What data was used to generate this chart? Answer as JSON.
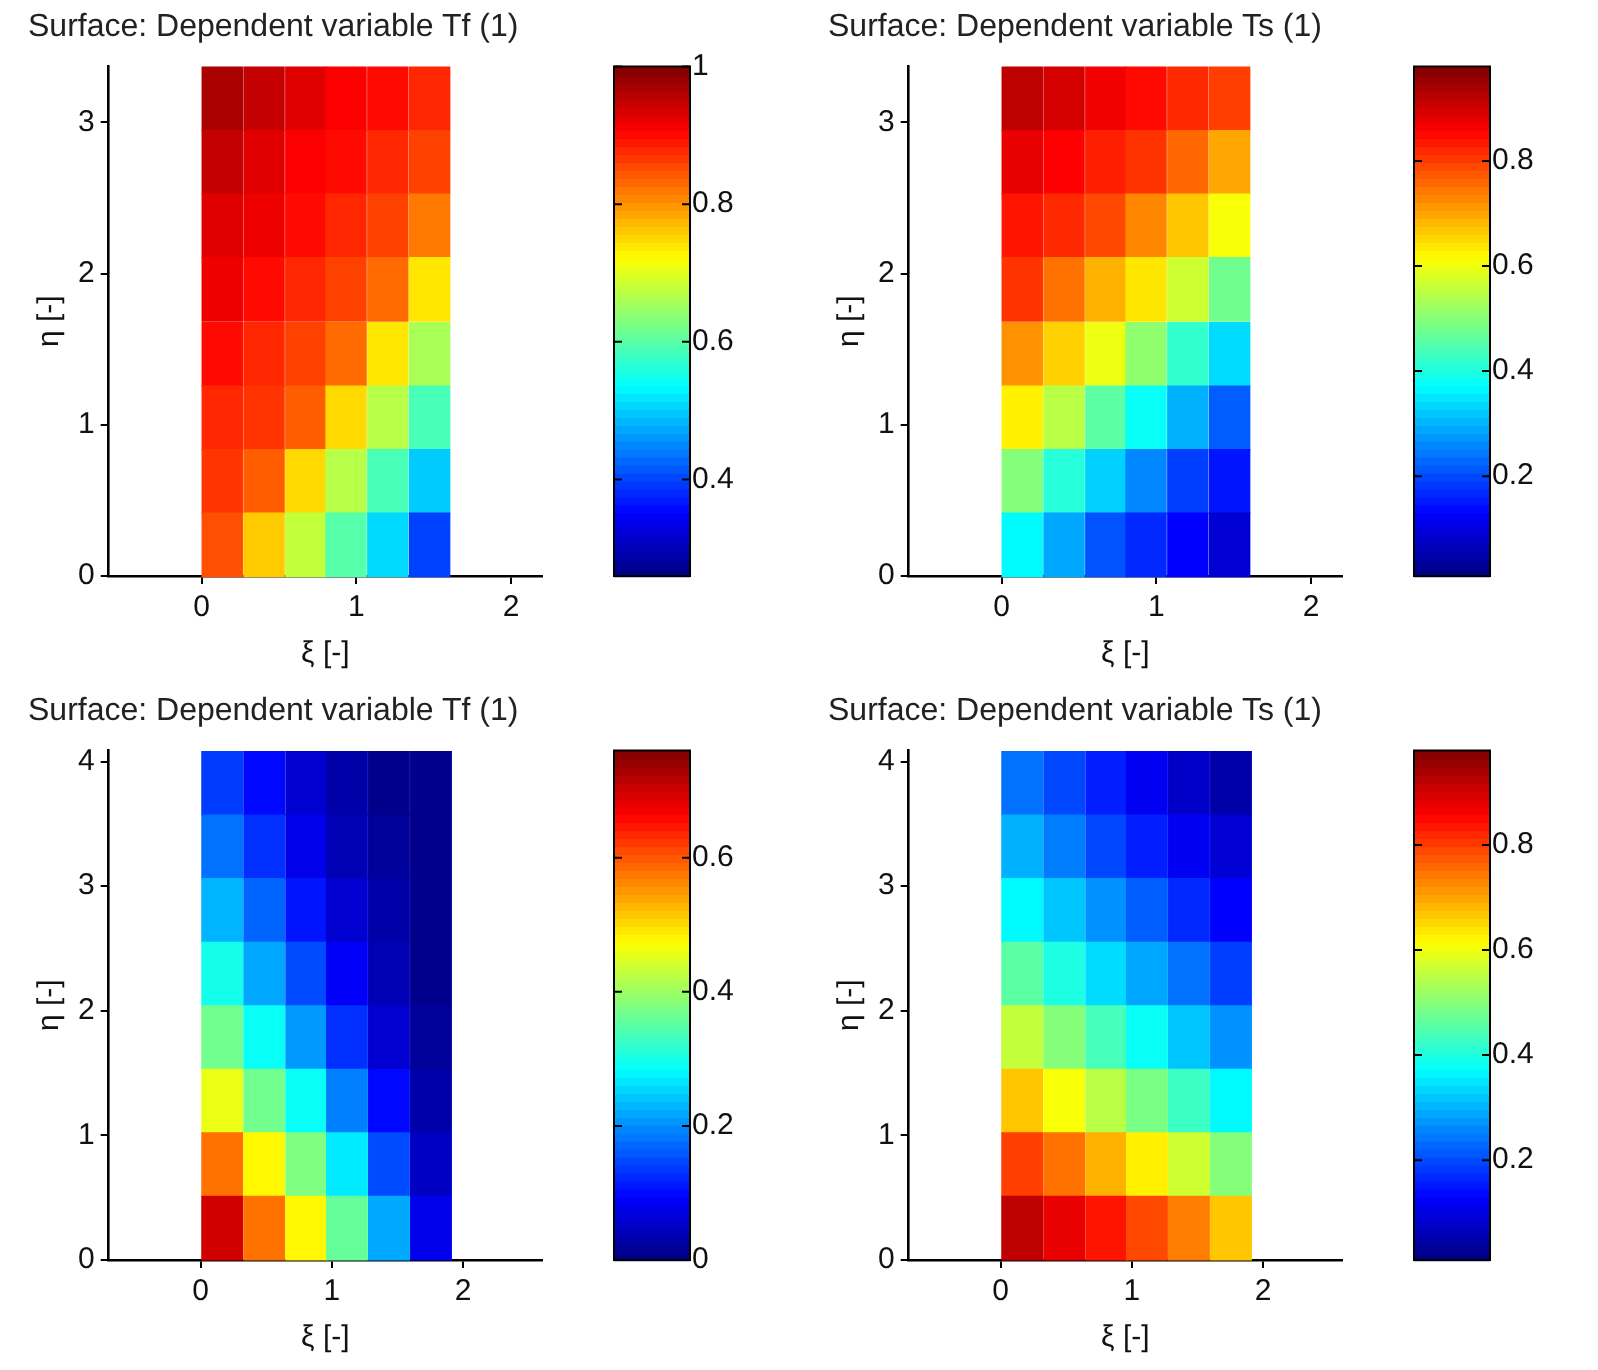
{
  "chart_data": [
    {
      "type": "scatter",
      "marker": "square",
      "title": "Surface: Dependent variable Tf (1)",
      "xlabel": "ξ [-]",
      "ylabel": "η [-]",
      "xlim": [
        -0.6,
        2.2
      ],
      "ylim": [
        0,
        3.37
      ],
      "xticks": [
        0,
        1,
        2
      ],
      "yticks": [
        0,
        1,
        2,
        3
      ],
      "clim": [
        0.26,
        1
      ],
      "cticks": [
        0.4,
        0.6,
        0.8,
        1
      ],
      "x": [
        0.13,
        0.4,
        0.67,
        0.93,
        1.2,
        1.47,
        0.13,
        0.4,
        0.67,
        0.93,
        1.2,
        1.47,
        0.13,
        0.4,
        0.67,
        0.93,
        1.2,
        1.47,
        0.13,
        0.4,
        0.67,
        0.93,
        1.2,
        1.47,
        0.13,
        0.4,
        0.67,
        0.93,
        1.2,
        1.47,
        0.13,
        0.4,
        0.67,
        0.93,
        1.2,
        1.47,
        0.13,
        0.4,
        0.67,
        0.93,
        1.2,
        1.47,
        0.13,
        0.4,
        0.67,
        0.93,
        1.2,
        1.47
      ],
      "values": [
        3.16,
        3.16,
        3.16,
        3.16,
        3.16,
        3.16,
        2.74,
        2.74,
        2.74,
        2.74,
        2.74,
        2.74,
        2.32,
        2.32,
        2.32,
        2.32,
        2.32,
        2.32,
        1.9,
        1.9,
        1.9,
        1.9,
        1.9,
        1.9,
        1.47,
        1.47,
        1.47,
        1.47,
        1.47,
        1.47,
        1.05,
        1.05,
        1.05,
        1.05,
        1.05,
        1.05,
        0.63,
        0.63,
        0.63,
        0.63,
        0.63,
        0.63,
        0.21,
        0.21,
        0.21,
        0.21,
        0.21,
        0.21
      ],
      "cvalues": [
        0.97,
        0.95,
        0.93,
        0.91,
        0.9,
        0.88,
        0.95,
        0.93,
        0.91,
        0.9,
        0.88,
        0.86,
        0.93,
        0.92,
        0.9,
        0.88,
        0.86,
        0.82,
        0.92,
        0.9,
        0.88,
        0.86,
        0.83,
        0.74,
        0.9,
        0.88,
        0.86,
        0.83,
        0.74,
        0.66,
        0.88,
        0.87,
        0.84,
        0.75,
        0.67,
        0.59,
        0.87,
        0.84,
        0.75,
        0.67,
        0.59,
        0.5,
        0.85,
        0.76,
        0.68,
        0.6,
        0.51,
        0.4
      ]
    },
    {
      "type": "scatter",
      "marker": "square",
      "title": "Surface: Dependent variable Ts (1)",
      "xlabel": "ξ [-]",
      "ylabel": "η [-]",
      "xlim": [
        -0.6,
        2.2
      ],
      "ylim": [
        0,
        3.37
      ],
      "xticks": [
        0,
        1,
        2
      ],
      "yticks": [
        0,
        1,
        2,
        3
      ],
      "clim": [
        0.01,
        0.98
      ],
      "cticks": [
        0.2,
        0.4,
        0.6,
        0.8
      ],
      "x": [
        0.13,
        0.4,
        0.67,
        0.93,
        1.2,
        1.47,
        0.13,
        0.4,
        0.67,
        0.93,
        1.2,
        1.47,
        0.13,
        0.4,
        0.67,
        0.93,
        1.2,
        1.47,
        0.13,
        0.4,
        0.67,
        0.93,
        1.2,
        1.47,
        0.13,
        0.4,
        0.67,
        0.93,
        1.2,
        1.47,
        0.13,
        0.4,
        0.67,
        0.93,
        1.2,
        1.47,
        0.13,
        0.4,
        0.67,
        0.93,
        1.2,
        1.47,
        0.13,
        0.4,
        0.67,
        0.93,
        1.2,
        1.47
      ],
      "values": [
        3.16,
        3.16,
        3.16,
        3.16,
        3.16,
        3.16,
        2.74,
        2.74,
        2.74,
        2.74,
        2.74,
        2.74,
        2.32,
        2.32,
        2.32,
        2.32,
        2.32,
        2.32,
        1.9,
        1.9,
        1.9,
        1.9,
        1.9,
        1.9,
        1.47,
        1.47,
        1.47,
        1.47,
        1.47,
        1.47,
        1.05,
        1.05,
        1.05,
        1.05,
        1.05,
        1.05,
        0.63,
        0.63,
        0.63,
        0.63,
        0.63,
        0.63,
        0.21,
        0.21,
        0.21,
        0.21,
        0.21,
        0.21
      ],
      "cvalues": [
        0.92,
        0.9,
        0.87,
        0.85,
        0.82,
        0.8,
        0.88,
        0.86,
        0.83,
        0.81,
        0.76,
        0.7,
        0.84,
        0.82,
        0.79,
        0.73,
        0.67,
        0.61,
        0.81,
        0.75,
        0.69,
        0.64,
        0.57,
        0.48,
        0.72,
        0.66,
        0.6,
        0.51,
        0.42,
        0.34,
        0.63,
        0.55,
        0.46,
        0.38,
        0.3,
        0.22,
        0.5,
        0.41,
        0.33,
        0.26,
        0.19,
        0.15,
        0.37,
        0.29,
        0.21,
        0.17,
        0.13,
        0.09
      ]
    },
    {
      "type": "scatter",
      "marker": "square",
      "title": "Surface: Dependent variable Tf (1)",
      "xlabel": "ξ [-]",
      "ylabel": "η [-]",
      "xlim": [
        -0.7,
        2.6
      ],
      "ylim": [
        0,
        4.09
      ],
      "xticks": [
        0,
        1,
        2
      ],
      "yticks": [
        0,
        1,
        2,
        3,
        4
      ],
      "clim": [
        0,
        0.76
      ],
      "cticks": [
        0,
        0.2,
        0.4,
        0.6
      ],
      "x": [
        0.16,
        0.48,
        0.8,
        1.11,
        1.43,
        1.75,
        0.16,
        0.48,
        0.8,
        1.11,
        1.43,
        1.75,
        0.16,
        0.48,
        0.8,
        1.11,
        1.43,
        1.75,
        0.16,
        0.48,
        0.8,
        1.11,
        1.43,
        1.75,
        0.16,
        0.48,
        0.8,
        1.11,
        1.43,
        1.75,
        0.16,
        0.48,
        0.8,
        1.11,
        1.43,
        1.75,
        0.16,
        0.48,
        0.8,
        1.11,
        1.43,
        1.75,
        0.16,
        0.48,
        0.8,
        1.11,
        1.43,
        1.75
      ],
      "values": [
        3.83,
        3.83,
        3.83,
        3.83,
        3.83,
        3.83,
        3.32,
        3.32,
        3.32,
        3.32,
        3.32,
        3.32,
        2.81,
        2.81,
        2.81,
        2.81,
        2.81,
        2.81,
        2.3,
        2.3,
        2.3,
        2.3,
        2.3,
        2.3,
        1.79,
        1.79,
        1.79,
        1.79,
        1.79,
        1.79,
        1.28,
        1.28,
        1.28,
        1.28,
        1.28,
        1.28,
        0.77,
        0.77,
        0.77,
        0.77,
        0.77,
        0.77,
        0.26,
        0.26,
        0.26,
        0.26,
        0.26,
        0.26
      ],
      "cvalues": [
        0.14,
        0.1,
        0.06,
        0.03,
        0.01,
        0.01,
        0.18,
        0.13,
        0.08,
        0.04,
        0.02,
        0.01,
        0.23,
        0.17,
        0.11,
        0.06,
        0.03,
        0.01,
        0.3,
        0.22,
        0.15,
        0.09,
        0.04,
        0.01,
        0.37,
        0.29,
        0.21,
        0.13,
        0.06,
        0.02,
        0.46,
        0.37,
        0.29,
        0.19,
        0.1,
        0.03,
        0.58,
        0.48,
        0.38,
        0.27,
        0.15,
        0.05,
        0.7,
        0.58,
        0.48,
        0.36,
        0.22,
        0.08
      ]
    },
    {
      "type": "scatter",
      "marker": "square",
      "title": "Surface: Dependent variable Ts (1)",
      "xlabel": "ξ [-]",
      "ylabel": "η [-]",
      "xlim": [
        -0.7,
        2.6
      ],
      "ylim": [
        0,
        4.09
      ],
      "xticks": [
        0,
        1,
        2
      ],
      "yticks": [
        0,
        1,
        2,
        3,
        4
      ],
      "clim": [
        0.01,
        0.98
      ],
      "cticks": [
        0.2,
        0.4,
        0.6,
        0.8
      ],
      "x": [
        0.16,
        0.48,
        0.8,
        1.11,
        1.43,
        1.75,
        0.16,
        0.48,
        0.8,
        1.11,
        1.43,
        1.75,
        0.16,
        0.48,
        0.8,
        1.11,
        1.43,
        1.75,
        0.16,
        0.48,
        0.8,
        1.11,
        1.43,
        1.75,
        0.16,
        0.48,
        0.8,
        1.11,
        1.43,
        1.75,
        0.16,
        0.48,
        0.8,
        1.11,
        1.43,
        1.75,
        0.16,
        0.48,
        0.8,
        1.11,
        1.43,
        1.75,
        0.16,
        0.48,
        0.8,
        1.11,
        1.43,
        1.75
      ],
      "values": [
        3.83,
        3.83,
        3.83,
        3.83,
        3.83,
        3.83,
        3.32,
        3.32,
        3.32,
        3.32,
        3.32,
        3.32,
        2.81,
        2.81,
        2.81,
        2.81,
        2.81,
        2.81,
        2.3,
        2.3,
        2.3,
        2.3,
        2.3,
        2.3,
        1.79,
        1.79,
        1.79,
        1.79,
        1.79,
        1.79,
        1.28,
        1.28,
        1.28,
        1.28,
        1.28,
        1.28,
        0.77,
        0.77,
        0.77,
        0.77,
        0.77,
        0.77,
        0.26,
        0.26,
        0.26,
        0.26,
        0.26,
        0.26
      ],
      "cvalues": [
        0.24,
        0.2,
        0.16,
        0.12,
        0.08,
        0.05,
        0.3,
        0.25,
        0.2,
        0.16,
        0.12,
        0.09,
        0.37,
        0.32,
        0.27,
        0.22,
        0.17,
        0.13,
        0.46,
        0.4,
        0.34,
        0.29,
        0.24,
        0.19,
        0.56,
        0.5,
        0.44,
        0.38,
        0.32,
        0.27,
        0.67,
        0.61,
        0.55,
        0.49,
        0.43,
        0.37,
        0.8,
        0.75,
        0.69,
        0.63,
        0.57,
        0.5,
        0.92,
        0.88,
        0.84,
        0.79,
        0.74,
        0.67
      ]
    }
  ]
}
